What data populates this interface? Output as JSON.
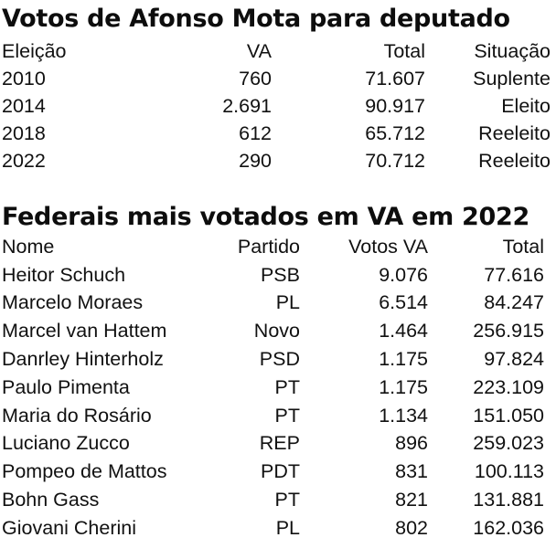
{
  "section1": {
    "title": "Votos de Afonso Mota para deputado",
    "headers": [
      "Eleição",
      "VA",
      "Total",
      "Situação"
    ],
    "rows": [
      [
        "2010",
        "760",
        "71.607",
        "Suplente"
      ],
      [
        "2014",
        "2.691",
        "90.917",
        "Eleito"
      ],
      [
        "2018",
        "612",
        "65.712",
        "Reeleito"
      ],
      [
        "2022",
        "290",
        "70.712",
        "Reeleito"
      ]
    ]
  },
  "section2": {
    "title": "Federais mais votados em VA em 2022",
    "headers": [
      "Nome",
      "Partido",
      "Votos VA",
      "Total"
    ],
    "rows": [
      [
        "Heitor Schuch",
        "PSB",
        "9.076",
        "77.616"
      ],
      [
        "Marcelo Moraes",
        "PL",
        "6.514",
        "84.247"
      ],
      [
        "Marcel van Hattem",
        "Novo",
        "1.464",
        "256.915"
      ],
      [
        "Danrley Hinterholz",
        "PSD",
        "1.175",
        "97.824"
      ],
      [
        "Paulo Pimenta",
        "PT",
        "1.175",
        "223.109"
      ],
      [
        "Maria do Rosário",
        "PT",
        "1.134",
        "151.050"
      ],
      [
        "Luciano Zucco",
        "REP",
        "896",
        "259.023"
      ],
      [
        "Pompeo de Mattos",
        "PDT",
        "831",
        "100.113"
      ],
      [
        "Bohn Gass",
        "PT",
        "821",
        "131.881"
      ],
      [
        "Giovani Cherini",
        "PL",
        "802",
        "162.036"
      ]
    ]
  }
}
